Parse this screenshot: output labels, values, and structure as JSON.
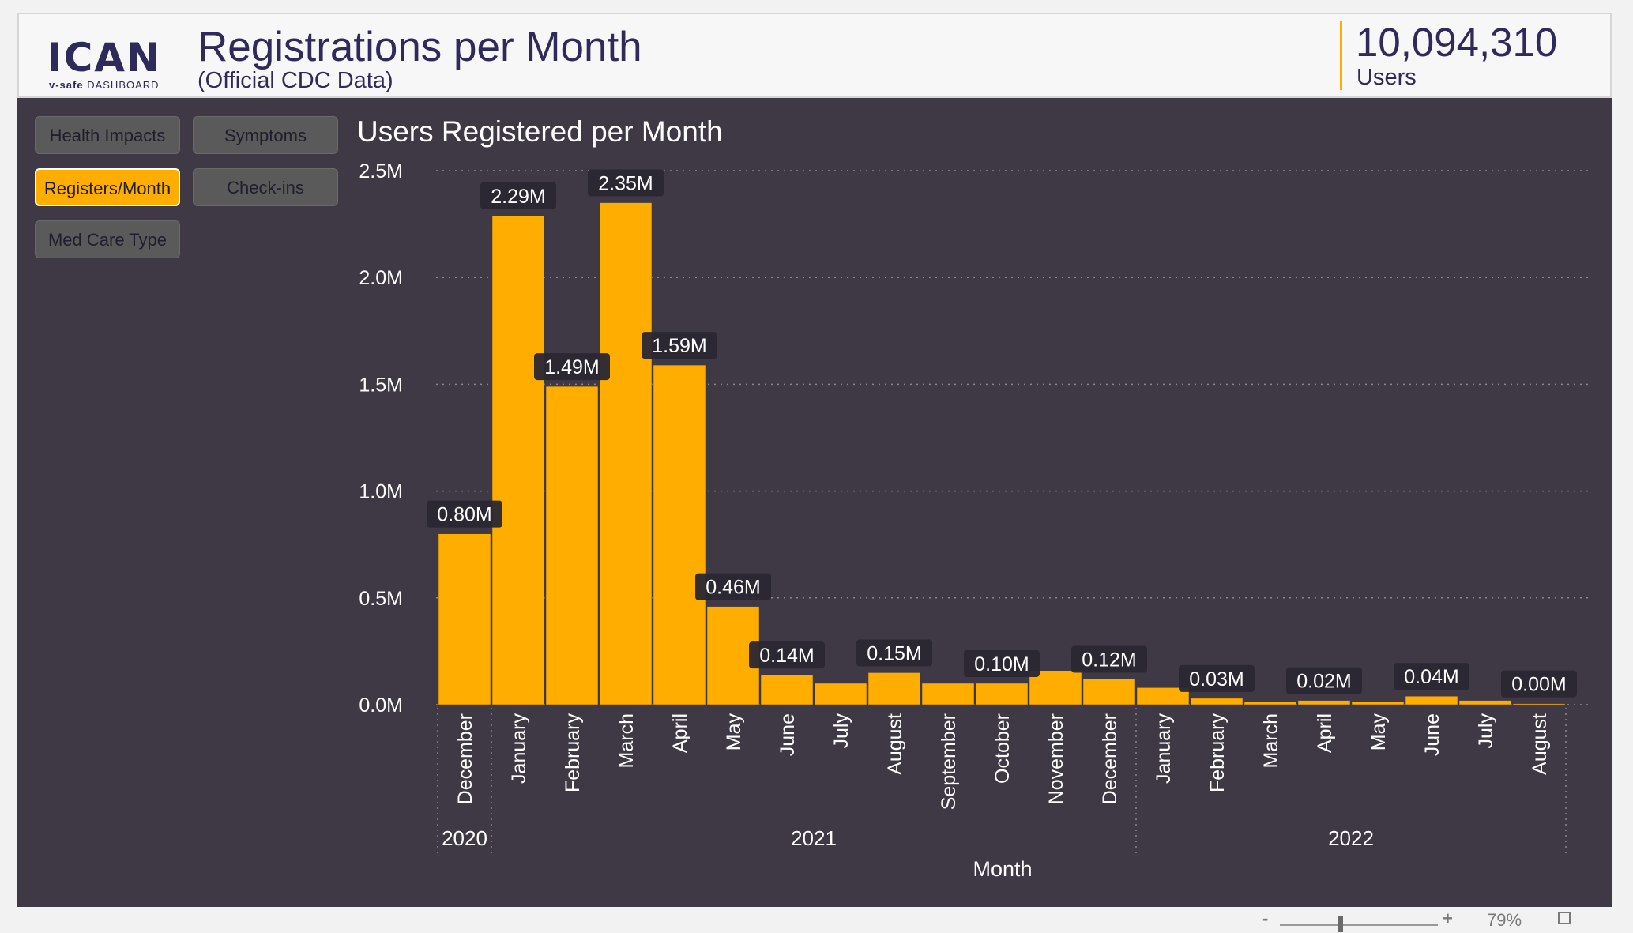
{
  "header": {
    "logo_word": "ICAN",
    "logo_sub_bold": "v-safe",
    "logo_sub": "DASHBOARD",
    "title": "Registrations per Month",
    "subtitle": "(Official CDC Data)",
    "kpi_value": "10,094,310",
    "kpi_label": "Users"
  },
  "nav": {
    "health_impacts": "Health Impacts",
    "symptoms": "Symptoms",
    "registers_month": "Registers/Month",
    "check_ins": "Check-ins",
    "med_care_type": "Med Care Type"
  },
  "zoom": {
    "minus": "-",
    "plus": "+",
    "level": "79%"
  },
  "colors": {
    "bar": "#ffae00",
    "background": "#3e3944",
    "label_bg": "#2a2733",
    "text": "#ffffff",
    "header_text": "#2e2a5a"
  },
  "chart_data": {
    "type": "bar",
    "title": "Users Registered per Month",
    "xlabel": "Month",
    "ylabel": "",
    "ylim": [
      0,
      2500000
    ],
    "yticks": [
      "0.0M",
      "0.5M",
      "1.0M",
      "1.5M",
      "2.0M",
      "2.5M"
    ],
    "grid": true,
    "categories": [
      "December",
      "January",
      "February",
      "March",
      "April",
      "May",
      "June",
      "July",
      "August",
      "September",
      "October",
      "November",
      "December",
      "January",
      "February",
      "March",
      "April",
      "May",
      "June",
      "July",
      "August"
    ],
    "years": [
      {
        "label": "2020",
        "start": 0,
        "end": 0
      },
      {
        "label": "2021",
        "start": 1,
        "end": 12
      },
      {
        "label": "2022",
        "start": 13,
        "end": 20
      }
    ],
    "values": [
      800000,
      2290000,
      1490000,
      2350000,
      1590000,
      460000,
      140000,
      100000,
      150000,
      100000,
      100000,
      160000,
      120000,
      80000,
      30000,
      15000,
      20000,
      15000,
      40000,
      20000,
      5000
    ],
    "data_labels": [
      "0.80M",
      "2.29M",
      "1.49M",
      "2.35M",
      "1.59M",
      "0.46M",
      "0.14M",
      "",
      "0.15M",
      "",
      "0.10M",
      "",
      "0.12M",
      "",
      "0.03M",
      "",
      "0.02M",
      "",
      "0.04M",
      "",
      "0.00M"
    ]
  }
}
